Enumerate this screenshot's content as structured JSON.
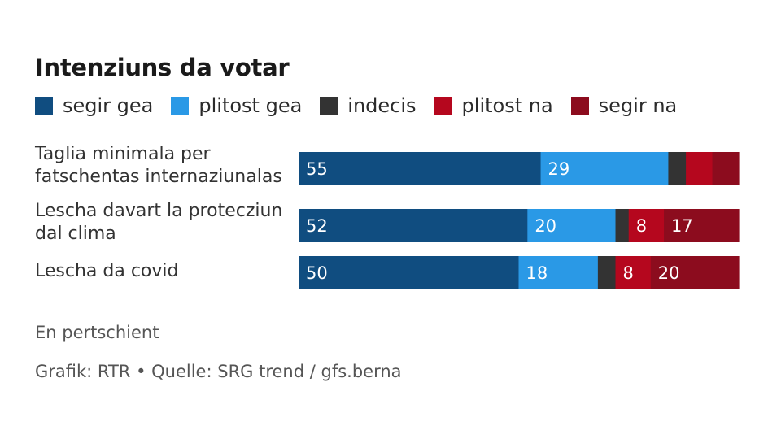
{
  "chart_data": {
    "type": "bar",
    "orientation": "horizontal",
    "stacked": true,
    "title": "Intenziuns da votar",
    "legend_position": "top",
    "categories": [
      [
        "Taglia minimala per",
        "fatschentas internaziunalas"
      ],
      [
        "Lescha davart la protecziun",
        "dal clima"
      ],
      [
        "Lescha da covid"
      ]
    ],
    "series": [
      {
        "name": "segir gea",
        "color": "#104d80",
        "values": [
          55,
          52,
          50
        ],
        "labels": [
          "55",
          "52",
          "50"
        ]
      },
      {
        "name": "plitost gea",
        "color": "#2a99e6",
        "values": [
          29,
          20,
          18
        ],
        "labels": [
          "29",
          "20",
          "18"
        ]
      },
      {
        "name": "indecis",
        "color": "#333333",
        "values": [
          4,
          3,
          4
        ],
        "labels": [
          "",
          "",
          ""
        ]
      },
      {
        "name": "plitost na",
        "color": "#b5071e",
        "values": [
          6,
          8,
          8
        ],
        "labels": [
          "",
          "8",
          "8"
        ]
      },
      {
        "name": "segir na",
        "color": "#8c0c1e",
        "values": [
          6,
          17,
          20
        ],
        "labels": [
          "",
          "17",
          "20"
        ]
      }
    ],
    "xlim": [
      0,
      100
    ],
    "unit_note": "En pertschient",
    "source": "Grafik: RTR • Quelle: SRG trend / gfs.berna"
  }
}
